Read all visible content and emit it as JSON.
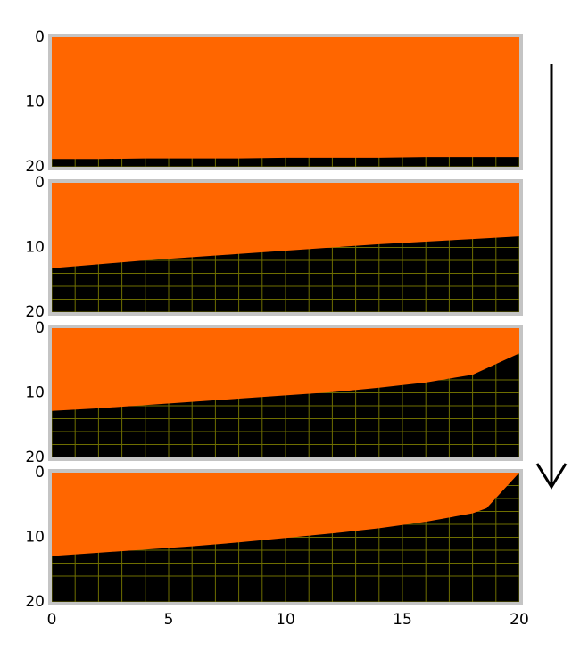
{
  "chart_data": [
    {
      "type": "area",
      "x": [
        0,
        2,
        4,
        6,
        8,
        10,
        12,
        14,
        16,
        18,
        20
      ],
      "values": [
        18.8,
        18.8,
        18.7,
        18.7,
        18.7,
        18.6,
        18.6,
        18.6,
        18.5,
        18.5,
        18.5
      ],
      "xlim": [
        0,
        20
      ],
      "ylim": [
        0,
        20
      ],
      "yticks": [
        0,
        10,
        20
      ],
      "y_inverted": true,
      "xgrid": [
        0,
        1,
        2,
        3,
        4,
        5,
        6,
        7,
        8,
        9,
        10,
        11,
        12,
        13,
        14,
        15,
        16,
        17,
        18,
        19,
        20
      ],
      "ygrid": [
        0,
        2,
        4,
        6,
        8,
        10,
        12,
        14,
        16,
        18,
        20
      ],
      "color": "#ff6600",
      "background": "#000000",
      "grid_color": "#6e6e00"
    },
    {
      "type": "area",
      "x": [
        0,
        2,
        4,
        6,
        8,
        10,
        12,
        14,
        16,
        18,
        20
      ],
      "values": [
        13.2,
        12.6,
        12.0,
        11.5,
        11.0,
        10.5,
        10.0,
        9.5,
        9.1,
        8.7,
        8.3
      ],
      "xlim": [
        0,
        20
      ],
      "ylim": [
        0,
        20
      ],
      "yticks": [
        0,
        10,
        20
      ],
      "y_inverted": true,
      "xgrid": [
        0,
        1,
        2,
        3,
        4,
        5,
        6,
        7,
        8,
        9,
        10,
        11,
        12,
        13,
        14,
        15,
        16,
        17,
        18,
        19,
        20
      ],
      "ygrid": [
        0,
        2,
        4,
        6,
        8,
        10,
        12,
        14,
        16,
        18,
        20
      ],
      "color": "#ff6600",
      "background": "#000000",
      "grid_color": "#6e6e00"
    },
    {
      "type": "area",
      "x": [
        0,
        2,
        4,
        6,
        8,
        10,
        12,
        14,
        16,
        18,
        20
      ],
      "values": [
        12.8,
        12.4,
        11.9,
        11.4,
        10.9,
        10.4,
        9.9,
        9.2,
        8.4,
        7.2,
        3.9
      ],
      "xlim": [
        0,
        20
      ],
      "ylim": [
        0,
        20
      ],
      "yticks": [
        0,
        10,
        20
      ],
      "y_inverted": true,
      "xgrid": [
        0,
        1,
        2,
        3,
        4,
        5,
        6,
        7,
        8,
        9,
        10,
        11,
        12,
        13,
        14,
        15,
        16,
        17,
        18,
        19,
        20
      ],
      "ygrid": [
        0,
        2,
        4,
        6,
        8,
        10,
        12,
        14,
        16,
        18,
        20
      ],
      "color": "#ff6600",
      "background": "#000000",
      "grid_color": "#6e6e00"
    },
    {
      "type": "area",
      "x": [
        0,
        2,
        4,
        6,
        8,
        10,
        12,
        14,
        16,
        18,
        18.6,
        20
      ],
      "values": [
        12.9,
        12.4,
        11.9,
        11.4,
        10.8,
        10.1,
        9.4,
        8.6,
        7.6,
        6.3,
        5.5,
        0
      ],
      "xlim": [
        0,
        20
      ],
      "ylim": [
        0,
        20
      ],
      "yticks": [
        0,
        10,
        20
      ],
      "y_inverted": true,
      "xticks": [
        0,
        5,
        10,
        15,
        20
      ],
      "xgrid": [
        0,
        1,
        2,
        3,
        4,
        5,
        6,
        7,
        8,
        9,
        10,
        11,
        12,
        13,
        14,
        15,
        16,
        17,
        18,
        19,
        20
      ],
      "ygrid": [
        0,
        2,
        4,
        6,
        8,
        10,
        12,
        14,
        16,
        18,
        20
      ],
      "color": "#ff6600",
      "background": "#000000",
      "grid_color": "#6e6e00"
    }
  ]
}
